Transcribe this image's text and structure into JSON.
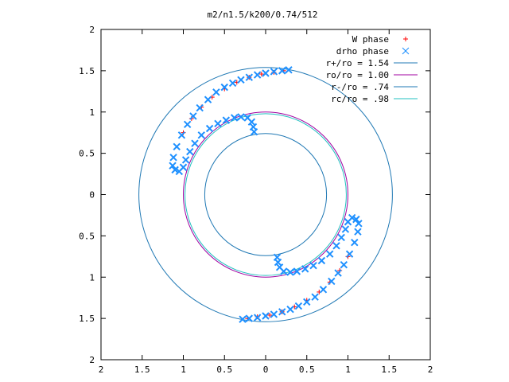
{
  "chart_data": {
    "type": "scatter",
    "title": "m2/n1.5/k200/0.74/512",
    "xlabel": "",
    "ylabel": "",
    "xlim": [
      -2,
      2
    ],
    "ylim": [
      -2,
      2
    ],
    "grid": false,
    "legend_position": "top-right",
    "x_ticks": [
      "2",
      "1.5",
      "1",
      "0.5",
      "0",
      "0.5",
      "1",
      "1.5",
      "2"
    ],
    "y_ticks": [
      "2",
      "1.5",
      "1",
      "0.5",
      "0",
      "0.5",
      "1",
      "1.5",
      "2"
    ],
    "x_tick_values": [
      -2,
      -1.5,
      -1,
      -0.5,
      0,
      0.5,
      1,
      1.5,
      2
    ],
    "y_tick_values": [
      2,
      1.5,
      1,
      0.5,
      0,
      -0.5,
      -1,
      -1.5,
      -2
    ],
    "series": [
      {
        "name": "W phase",
        "kind": "points",
        "marker": "plus",
        "color": "#ff0000",
        "points": [
          [
            -1.0,
            0.75
          ],
          [
            -0.9,
            0.92
          ],
          [
            -0.78,
            1.06
          ],
          [
            -0.65,
            1.18
          ],
          [
            -0.5,
            1.28
          ],
          [
            -0.35,
            1.36
          ],
          [
            -0.2,
            1.42
          ],
          [
            -0.05,
            1.46
          ],
          [
            0.1,
            1.48
          ],
          [
            0.22,
            1.5
          ],
          [
            1.0,
            -0.75
          ],
          [
            0.9,
            -0.92
          ],
          [
            0.78,
            -1.06
          ],
          [
            0.65,
            -1.18
          ],
          [
            0.5,
            -1.28
          ],
          [
            0.35,
            -1.36
          ],
          [
            0.2,
            -1.42
          ],
          [
            0.05,
            -1.46
          ],
          [
            -0.1,
            -1.48
          ],
          [
            -0.22,
            -1.5
          ]
        ]
      },
      {
        "name": "drho phase",
        "kind": "points",
        "marker": "x",
        "color": "#1e90ff",
        "points": [
          [
            0.28,
            1.51
          ],
          [
            0.2,
            1.5
          ],
          [
            0.1,
            1.49
          ],
          [
            0.0,
            1.47
          ],
          [
            -0.1,
            1.45
          ],
          [
            -0.2,
            1.42
          ],
          [
            -0.3,
            1.39
          ],
          [
            -0.4,
            1.35
          ],
          [
            -0.5,
            1.3
          ],
          [
            -0.6,
            1.24
          ],
          [
            -0.7,
            1.15
          ],
          [
            -0.8,
            1.05
          ],
          [
            -0.88,
            0.95
          ],
          [
            -0.95,
            0.85
          ],
          [
            -1.02,
            0.72
          ],
          [
            -1.08,
            0.58
          ],
          [
            -1.12,
            0.45
          ],
          [
            -1.13,
            0.35
          ],
          [
            -1.1,
            0.3
          ],
          [
            -1.05,
            0.28
          ],
          [
            -1.0,
            0.33
          ],
          [
            -0.97,
            0.42
          ],
          [
            -0.92,
            0.52
          ],
          [
            -0.86,
            0.62
          ],
          [
            -0.78,
            0.72
          ],
          [
            -0.68,
            0.8
          ],
          [
            -0.58,
            0.86
          ],
          [
            -0.48,
            0.9
          ],
          [
            -0.38,
            0.93
          ],
          [
            -0.3,
            0.94
          ],
          [
            -0.22,
            0.93
          ],
          [
            -0.17,
            0.88
          ],
          [
            -0.15,
            0.82
          ],
          [
            -0.14,
            0.76
          ],
          [
            -0.28,
            -1.51
          ],
          [
            -0.2,
            -1.5
          ],
          [
            -0.1,
            -1.49
          ],
          [
            0.0,
            -1.47
          ],
          [
            0.1,
            -1.45
          ],
          [
            0.2,
            -1.42
          ],
          [
            0.3,
            -1.39
          ],
          [
            0.4,
            -1.35
          ],
          [
            0.5,
            -1.3
          ],
          [
            0.6,
            -1.24
          ],
          [
            0.7,
            -1.15
          ],
          [
            0.8,
            -1.05
          ],
          [
            0.88,
            -0.95
          ],
          [
            0.95,
            -0.85
          ],
          [
            1.02,
            -0.72
          ],
          [
            1.08,
            -0.58
          ],
          [
            1.12,
            -0.45
          ],
          [
            1.13,
            -0.35
          ],
          [
            1.1,
            -0.3
          ],
          [
            1.05,
            -0.28
          ],
          [
            1.0,
            -0.33
          ],
          [
            0.97,
            -0.42
          ],
          [
            0.92,
            -0.52
          ],
          [
            0.86,
            -0.62
          ],
          [
            0.78,
            -0.72
          ],
          [
            0.68,
            -0.8
          ],
          [
            0.58,
            -0.86
          ],
          [
            0.48,
            -0.9
          ],
          [
            0.38,
            -0.93
          ],
          [
            0.3,
            -0.94
          ],
          [
            0.22,
            -0.93
          ],
          [
            0.17,
            -0.88
          ],
          [
            0.15,
            -0.82
          ],
          [
            0.14,
            -0.76
          ]
        ]
      },
      {
        "name": "r+/ro = 1.54",
        "kind": "circle",
        "radius": 1.54,
        "color": "#1f78b4"
      },
      {
        "name": "ro/ro = 1.00",
        "kind": "circle",
        "radius": 1.0,
        "color": "#a000a0"
      },
      {
        "name": "r-/ro = .74",
        "kind": "circle",
        "radius": 0.74,
        "color": "#1f78b4"
      },
      {
        "name": "rc/ro = .98",
        "kind": "circle",
        "radius": 0.98,
        "color": "#20c0c0"
      }
    ]
  }
}
